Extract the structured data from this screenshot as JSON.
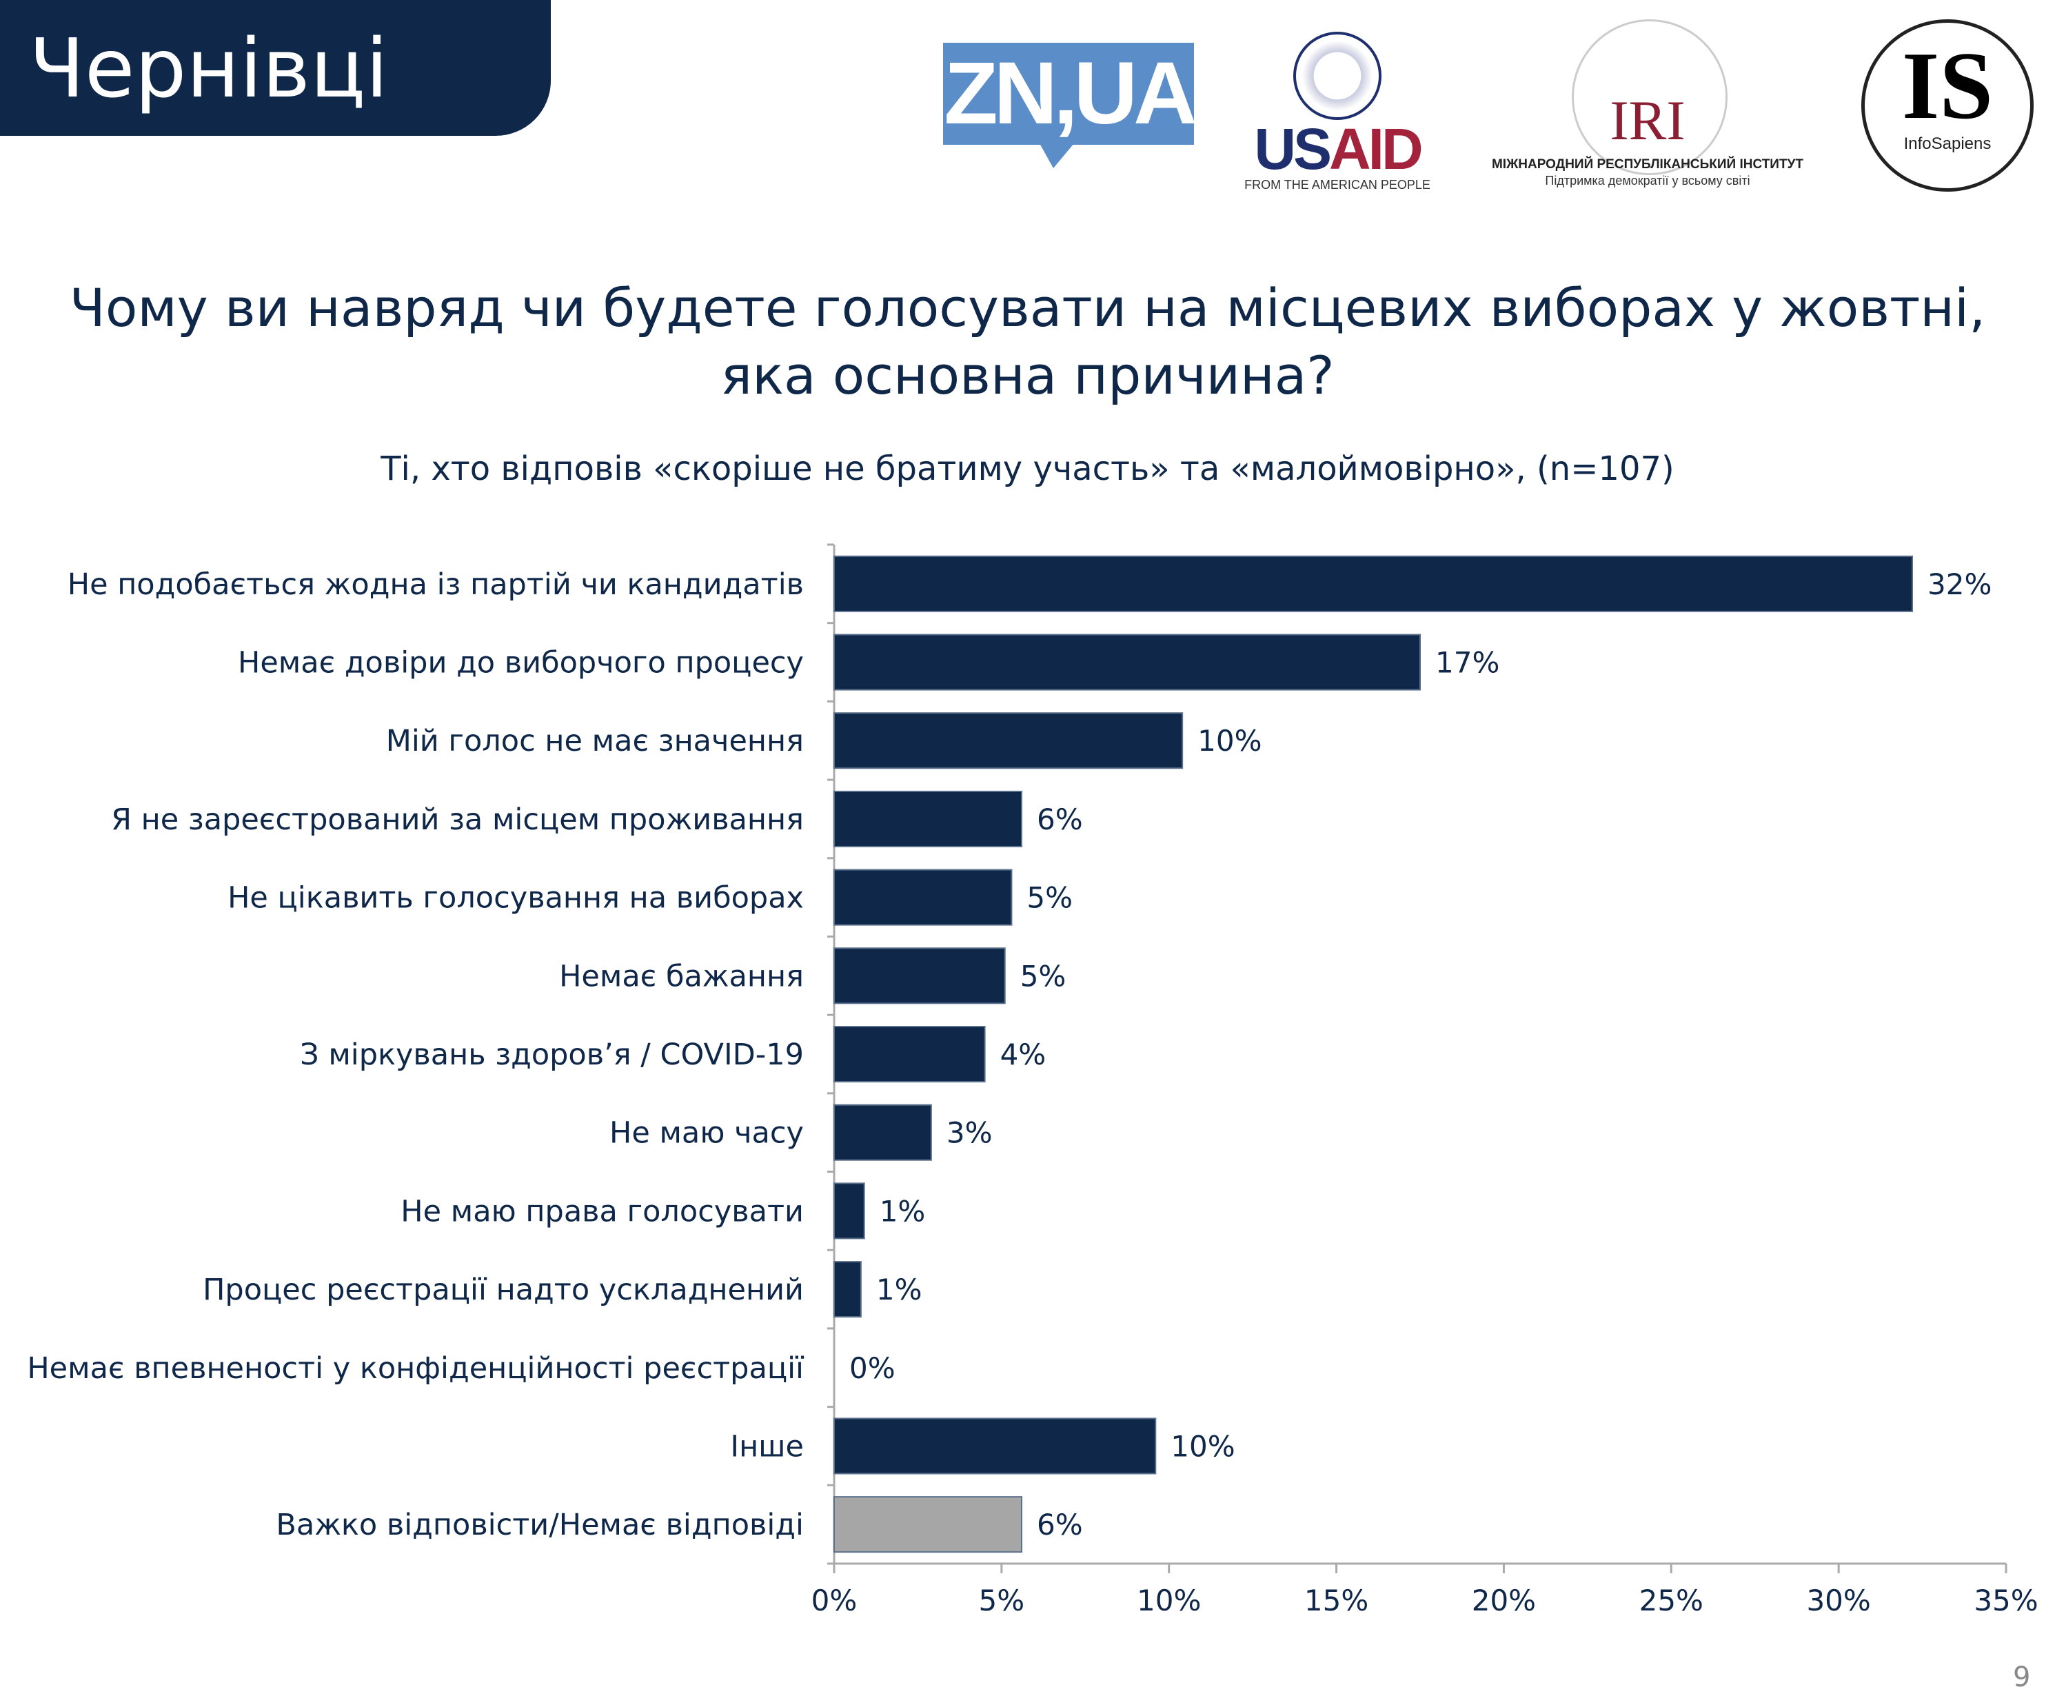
{
  "header": {
    "city": "Чернівці"
  },
  "logos": {
    "zn": "ZN,UA",
    "usaid": {
      "us": "US",
      "aid": "AID",
      "tagline": "FROM THE AMERICAN PEOPLE"
    },
    "iri": {
      "name": "IRI",
      "line1": "МІЖНАРОДНИЙ РЕСПУБЛІКАНСЬКИЙ ІНСТИТУТ",
      "line2": "Підтримка демократії у всьому світі"
    },
    "infosapiens": {
      "mark": "IS",
      "name": "InfoSapiens"
    }
  },
  "page_number": "9",
  "chart_data": {
    "type": "bar",
    "orientation": "horizontal",
    "title": "Чому ви навряд чи будете голосувати на місцевих виборах у жовтні, яка основна причина?",
    "subtitle": "Ті, хто відповів «скоріше не братиму участь» та «малоймовірно», (n=107)",
    "categories": [
      "Не подобається жодна із партій чи кандидатів",
      "Немає довіри до виборчого процесу",
      "Мій голос не має значення",
      "Я не зареєстрований за місцем проживання",
      "Не цікавить голосування на виборах",
      "Немає бажання",
      "З міркувань здоров’я / COVID-19",
      "Не маю часу",
      "Не маю права голосувати",
      "Процес реєстрації надто ускладнений",
      "Немає впевненості у конфіденційності реєстрації",
      "Інше",
      "Важко відповісти/Немає відповіді"
    ],
    "values": [
      32.2,
      17.5,
      10.4,
      5.6,
      5.3,
      5.1,
      4.5,
      2.9,
      0.9,
      0.8,
      0,
      9.6,
      5.6
    ],
    "data_labels": [
      "32%",
      "17%",
      "10%",
      "6%",
      "5%",
      "5%",
      "4%",
      "3%",
      "1%",
      "1%",
      "0%",
      "10%",
      "6%"
    ],
    "bar_colors": [
      "#0f2748",
      "#0f2748",
      "#0f2748",
      "#0f2748",
      "#0f2748",
      "#0f2748",
      "#0f2748",
      "#0f2748",
      "#0f2748",
      "#0f2748",
      "#0f2748",
      "#0f2748",
      "#a6a6a6"
    ],
    "xlim": [
      0,
      35
    ],
    "xticks": [
      "0%",
      "5%",
      "10%",
      "15%",
      "20%",
      "25%",
      "30%",
      "35%"
    ],
    "grid": false
  }
}
